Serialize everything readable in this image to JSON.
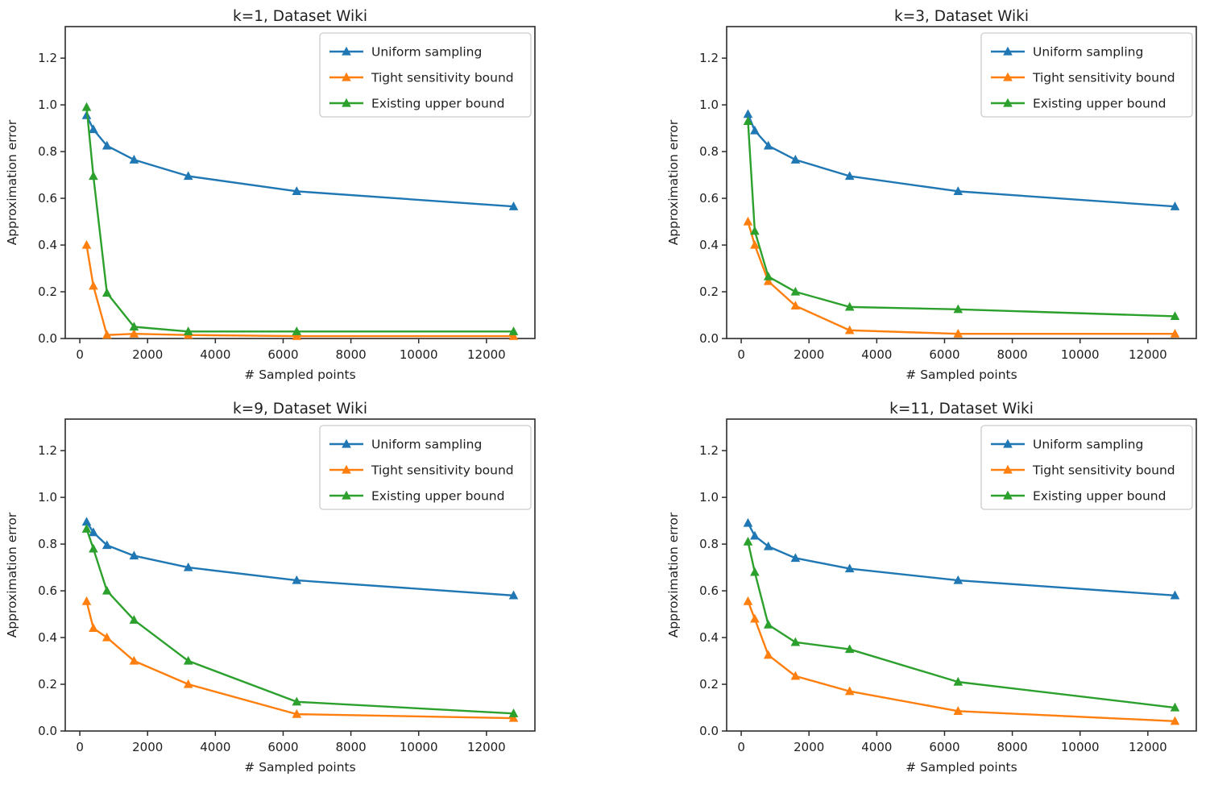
{
  "figure": {
    "background": "#ffffff",
    "text_color": "#1f1f1f",
    "spine_color": "#2b2b2b",
    "tick_color": "#2b2b2b",
    "legend_border_color": "#cccccc",
    "legend_background": "#ffffff"
  },
  "legend": {
    "position": "upper right",
    "marker": "triangle-up-icon",
    "entries": [
      {
        "label": "Uniform sampling",
        "color": "#1f77b4"
      },
      {
        "label": "Tight sensitivity bound",
        "color": "#ff7f0e"
      },
      {
        "label": "Existing upper bound",
        "color": "#2ca02c"
      }
    ]
  },
  "chart_data": [
    {
      "type": "line",
      "title": "k=1, Dataset Wiki",
      "xlabel": "# Sampled points",
      "ylabel": "Approximation error",
      "x": [
        200,
        400,
        800,
        1600,
        3200,
        6400,
        12800
      ],
      "series": [
        {
          "name": "Uniform sampling",
          "color": "#1f77b4",
          "values": [
            0.955,
            0.895,
            0.825,
            0.765,
            0.695,
            0.63,
            0.565
          ]
        },
        {
          "name": "Tight sensitivity bound",
          "color": "#ff7f0e",
          "values": [
            0.4,
            0.225,
            0.015,
            0.02,
            0.015,
            0.01,
            0.01
          ]
        },
        {
          "name": "Existing upper bound",
          "color": "#2ca02c",
          "values": [
            0.99,
            0.695,
            0.195,
            0.05,
            0.03,
            0.03,
            0.03
          ]
        }
      ],
      "xlim": [
        -430,
        13430
      ],
      "ylim": [
        0,
        1.335
      ],
      "xticks": [
        0,
        2000,
        4000,
        6000,
        8000,
        10000,
        12000
      ],
      "yticks": [
        0.0,
        0.2,
        0.4,
        0.6,
        0.8,
        1.0,
        1.2
      ],
      "grid": false,
      "legend_position": "upper right"
    },
    {
      "type": "line",
      "title": "k=3, Dataset Wiki",
      "xlabel": "# Sampled points",
      "ylabel": "Approximation error",
      "x": [
        200,
        400,
        800,
        1600,
        3200,
        6400,
        12800
      ],
      "series": [
        {
          "name": "Uniform sampling",
          "color": "#1f77b4",
          "values": [
            0.96,
            0.89,
            0.825,
            0.765,
            0.695,
            0.63,
            0.565
          ]
        },
        {
          "name": "Tight sensitivity bound",
          "color": "#ff7f0e",
          "values": [
            0.5,
            0.4,
            0.245,
            0.14,
            0.035,
            0.02,
            0.02
          ]
        },
        {
          "name": "Existing upper bound",
          "color": "#2ca02c",
          "values": [
            0.93,
            0.46,
            0.265,
            0.2,
            0.135,
            0.125,
            0.095
          ]
        }
      ],
      "xlim": [
        -430,
        13430
      ],
      "ylim": [
        0,
        1.335
      ],
      "xticks": [
        0,
        2000,
        4000,
        6000,
        8000,
        10000,
        12000
      ],
      "yticks": [
        0.0,
        0.2,
        0.4,
        0.6,
        0.8,
        1.0,
        1.2
      ],
      "grid": false,
      "legend_position": "upper right"
    },
    {
      "type": "line",
      "title": "k=9, Dataset Wiki",
      "xlabel": "# Sampled points",
      "ylabel": "Approximation error",
      "x": [
        200,
        400,
        800,
        1600,
        3200,
        6400,
        12800
      ],
      "series": [
        {
          "name": "Uniform sampling",
          "color": "#1f77b4",
          "values": [
            0.895,
            0.85,
            0.795,
            0.75,
            0.7,
            0.645,
            0.58
          ]
        },
        {
          "name": "Tight sensitivity bound",
          "color": "#ff7f0e",
          "values": [
            0.555,
            0.44,
            0.4,
            0.3,
            0.2,
            0.072,
            0.055
          ]
        },
        {
          "name": "Existing upper bound",
          "color": "#2ca02c",
          "values": [
            0.865,
            0.78,
            0.6,
            0.475,
            0.3,
            0.125,
            0.075
          ]
        }
      ],
      "xlim": [
        -430,
        13430
      ],
      "ylim": [
        0,
        1.335
      ],
      "xticks": [
        0,
        2000,
        4000,
        6000,
        8000,
        10000,
        12000
      ],
      "yticks": [
        0.0,
        0.2,
        0.4,
        0.6,
        0.8,
        1.0,
        1.2
      ],
      "grid": false,
      "legend_position": "upper right"
    },
    {
      "type": "line",
      "title": "k=11, Dataset Wiki",
      "xlabel": "# Sampled points",
      "ylabel": "Approximation error",
      "x": [
        200,
        400,
        800,
        1600,
        3200,
        6400,
        12800
      ],
      "series": [
        {
          "name": "Uniform sampling",
          "color": "#1f77b4",
          "values": [
            0.89,
            0.835,
            0.79,
            0.74,
            0.695,
            0.645,
            0.58
          ]
        },
        {
          "name": "Tight sensitivity bound",
          "color": "#ff7f0e",
          "values": [
            0.555,
            0.48,
            0.325,
            0.235,
            0.17,
            0.085,
            0.042
          ]
        },
        {
          "name": "Existing upper bound",
          "color": "#2ca02c",
          "values": [
            0.81,
            0.68,
            0.455,
            0.38,
            0.35,
            0.21,
            0.1
          ]
        }
      ],
      "xlim": [
        -430,
        13430
      ],
      "ylim": [
        0,
        1.335
      ],
      "xticks": [
        0,
        2000,
        4000,
        6000,
        8000,
        10000,
        12000
      ],
      "yticks": [
        0.0,
        0.2,
        0.4,
        0.6,
        0.8,
        1.0,
        1.2
      ],
      "grid": false,
      "legend_position": "upper right"
    }
  ]
}
